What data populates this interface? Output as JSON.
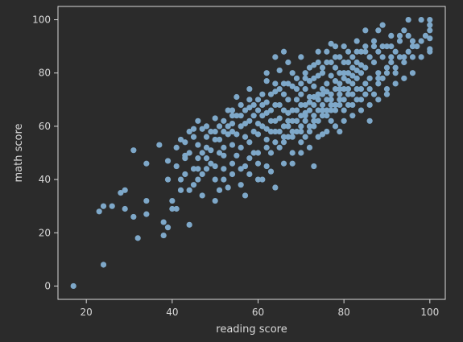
{
  "chart_data": {
    "type": "scatter",
    "title": "",
    "xlabel": "reading score",
    "ylabel": "math score",
    "xlim": [
      13.4,
      103.6
    ],
    "ylim": [
      -5,
      105
    ],
    "xticks": [
      20,
      40,
      60,
      80,
      100
    ],
    "yticks": [
      0,
      20,
      40,
      60,
      80,
      100
    ],
    "grid": false,
    "colors": {
      "background": "#2b2b2b",
      "point": "#7ea8c9",
      "axis": "#d8d8d8",
      "text": "#d8d8d8"
    },
    "points": [
      [
        17,
        0
      ],
      [
        24,
        8
      ],
      [
        32,
        18
      ],
      [
        38,
        19
      ],
      [
        44,
        23
      ],
      [
        23,
        28
      ],
      [
        24,
        30
      ],
      [
        26,
        30
      ],
      [
        29,
        29
      ],
      [
        28,
        35
      ],
      [
        29,
        36
      ],
      [
        31,
        26
      ],
      [
        34,
        27
      ],
      [
        34,
        32
      ],
      [
        31,
        51
      ],
      [
        34,
        46
      ],
      [
        37,
        53
      ],
      [
        38,
        24
      ],
      [
        39,
        22
      ],
      [
        40,
        29
      ],
      [
        41,
        29
      ],
      [
        42,
        36
      ],
      [
        40,
        32
      ],
      [
        42,
        40
      ],
      [
        39,
        47
      ],
      [
        39,
        40
      ],
      [
        41,
        45
      ],
      [
        43,
        42
      ],
      [
        43,
        48
      ],
      [
        41,
        52
      ],
      [
        42,
        55
      ],
      [
        44,
        58
      ],
      [
        45,
        59
      ],
      [
        43,
        49
      ],
      [
        45,
        44
      ],
      [
        45,
        38
      ],
      [
        47,
        34
      ],
      [
        47,
        42
      ],
      [
        46,
        53
      ],
      [
        46,
        62
      ],
      [
        47,
        59
      ],
      [
        48,
        52
      ],
      [
        49,
        51
      ],
      [
        49,
        46
      ],
      [
        50,
        40
      ],
      [
        50,
        32
      ],
      [
        51,
        36
      ],
      [
        51,
        55
      ],
      [
        50,
        63
      ],
      [
        51,
        60
      ],
      [
        52,
        44
      ],
      [
        52,
        52
      ],
      [
        53,
        57
      ],
      [
        53,
        37
      ],
      [
        54,
        46
      ],
      [
        54,
        64
      ],
      [
        55,
        71
      ],
      [
        54,
        58
      ],
      [
        55,
        49
      ],
      [
        56,
        52
      ],
      [
        56,
        38
      ],
      [
        57,
        61
      ],
      [
        57,
        45
      ],
      [
        57,
        34
      ],
      [
        58,
        54
      ],
      [
        58,
        67
      ],
      [
        59,
        64
      ],
      [
        59,
        50
      ],
      [
        60,
        46
      ],
      [
        60,
        57
      ],
      [
        61,
        72
      ],
      [
        61,
        60
      ],
      [
        61,
        40
      ],
      [
        62,
        55
      ],
      [
        62,
        65
      ],
      [
        62,
        77
      ],
      [
        63,
        50
      ],
      [
        63,
        62
      ],
      [
        63,
        43
      ],
      [
        64,
        58
      ],
      [
        64,
        68
      ],
      [
        64,
        73
      ],
      [
        64,
        37
      ],
      [
        65,
        52
      ],
      [
        65,
        63
      ],
      [
        65,
        81
      ],
      [
        66,
        60
      ],
      [
        66,
        66
      ],
      [
        66,
        56
      ],
      [
        67,
        70
      ],
      [
        67,
        62
      ],
      [
        67,
        84
      ],
      [
        68,
        58
      ],
      [
        68,
        66
      ],
      [
        68,
        75
      ],
      [
        68,
        50
      ],
      [
        69,
        62
      ],
      [
        69,
        70
      ],
      [
        69,
        78
      ],
      [
        70,
        64
      ],
      [
        70,
        72
      ],
      [
        70,
        58
      ],
      [
        70,
        54
      ],
      [
        71,
        68
      ],
      [
        71,
        74
      ],
      [
        71,
        80
      ],
      [
        71,
        62
      ],
      [
        72,
        66
      ],
      [
        72,
        71
      ],
      [
        72,
        77
      ],
      [
        72,
        60
      ],
      [
        73,
        68
      ],
      [
        73,
        75
      ],
      [
        73,
        83
      ],
      [
        73,
        45
      ],
      [
        73,
        62
      ],
      [
        74,
        72
      ],
      [
        74,
        79
      ],
      [
        74,
        66
      ],
      [
        74,
        88
      ],
      [
        75,
        68
      ],
      [
        75,
        74
      ],
      [
        75,
        57
      ],
      [
        75,
        80
      ],
      [
        76,
        70
      ],
      [
        76,
        76
      ],
      [
        76,
        84
      ],
      [
        76,
        64
      ],
      [
        77,
        72
      ],
      [
        77,
        79
      ],
      [
        77,
        62
      ],
      [
        77,
        91
      ],
      [
        78,
        74
      ],
      [
        78,
        82
      ],
      [
        78,
        68
      ],
      [
        78,
        86
      ],
      [
        79,
        76
      ],
      [
        79,
        70
      ],
      [
        79,
        80
      ],
      [
        79,
        58
      ],
      [
        80,
        78
      ],
      [
        80,
        84
      ],
      [
        80,
        66
      ],
      [
        80,
        74
      ],
      [
        81,
        80
      ],
      [
        81,
        88
      ],
      [
        81,
        72
      ],
      [
        82,
        76
      ],
      [
        82,
        82
      ],
      [
        82,
        86
      ],
      [
        82,
        68
      ],
      [
        83,
        78
      ],
      [
        83,
        84
      ],
      [
        83,
        92
      ],
      [
        83,
        74
      ],
      [
        84,
        80
      ],
      [
        84,
        88
      ],
      [
        84,
        70
      ],
      [
        85,
        76
      ],
      [
        85,
        82
      ],
      [
        85,
        90
      ],
      [
        85,
        96
      ],
      [
        86,
        78
      ],
      [
        86,
        86
      ],
      [
        86,
        62
      ],
      [
        87,
        84
      ],
      [
        87,
        92
      ],
      [
        87,
        72
      ],
      [
        88,
        80
      ],
      [
        88,
        88
      ],
      [
        88,
        96
      ],
      [
        88,
        76
      ],
      [
        89,
        86
      ],
      [
        89,
        78
      ],
      [
        89,
        98
      ],
      [
        90,
        82
      ],
      [
        90,
        90
      ],
      [
        90,
        74
      ],
      [
        91,
        84
      ],
      [
        91,
        94
      ],
      [
        91,
        86
      ],
      [
        92,
        80
      ],
      [
        92,
        88
      ],
      [
        93,
        86
      ],
      [
        93,
        92
      ],
      [
        94,
        84
      ],
      [
        94,
        96
      ],
      [
        95,
        88
      ],
      [
        95,
        100
      ],
      [
        96,
        92
      ],
      [
        96,
        86
      ],
      [
        97,
        90
      ],
      [
        98,
        100
      ],
      [
        99,
        94
      ],
      [
        100,
        98
      ],
      [
        100,
        88
      ],
      [
        100,
        96
      ],
      [
        100,
        100
      ],
      [
        100,
        93
      ],
      [
        100,
        89
      ],
      [
        65,
        68
      ],
      [
        66,
        72
      ],
      [
        67,
        65
      ],
      [
        68,
        62
      ],
      [
        69,
        66
      ],
      [
        70,
        68
      ],
      [
        71,
        65
      ],
      [
        72,
        69
      ],
      [
        73,
        71
      ],
      [
        74,
        70
      ],
      [
        75,
        72
      ],
      [
        76,
        73
      ],
      [
        77,
        70
      ],
      [
        78,
        77
      ],
      [
        79,
        74
      ],
      [
        80,
        80
      ],
      [
        81,
        77
      ],
      [
        82,
        79
      ],
      [
        83,
        81
      ],
      [
        84,
        83
      ],
      [
        58,
        62
      ],
      [
        59,
        58
      ],
      [
        60,
        61
      ],
      [
        61,
        64
      ],
      [
        62,
        59
      ],
      [
        63,
        66
      ],
      [
        64,
        62
      ],
      [
        60,
        66
      ],
      [
        57,
        56
      ],
      [
        56,
        60
      ],
      [
        55,
        57
      ],
      [
        54,
        53
      ],
      [
        53,
        60
      ],
      [
        52,
        49
      ],
      [
        51,
        50
      ],
      [
        50,
        55
      ],
      [
        49,
        58
      ],
      [
        48,
        56
      ],
      [
        47,
        50
      ],
      [
        46,
        48
      ],
      [
        44,
        50
      ],
      [
        43,
        54
      ],
      [
        45,
        56
      ],
      [
        48,
        60
      ],
      [
        50,
        58
      ],
      [
        52,
        62
      ],
      [
        54,
        61
      ],
      [
        56,
        64
      ],
      [
        58,
        70
      ],
      [
        60,
        70
      ],
      [
        62,
        69
      ],
      [
        64,
        76
      ],
      [
        66,
        76
      ],
      [
        68,
        80
      ],
      [
        70,
        76
      ],
      [
        72,
        82
      ],
      [
        74,
        84
      ],
      [
        76,
        88
      ],
      [
        78,
        90
      ],
      [
        80,
        90
      ],
      [
        66,
        46
      ],
      [
        68,
        46
      ],
      [
        70,
        50
      ],
      [
        72,
        52
      ],
      [
        74,
        56
      ],
      [
        76,
        58
      ],
      [
        78,
        60
      ],
      [
        80,
        62
      ],
      [
        82,
        64
      ],
      [
        84,
        66
      ],
      [
        86,
        68
      ],
      [
        88,
        70
      ],
      [
        90,
        72
      ],
      [
        92,
        76
      ],
      [
        94,
        78
      ],
      [
        96,
        80
      ],
      [
        98,
        86
      ],
      [
        58,
        42
      ],
      [
        60,
        40
      ],
      [
        62,
        45
      ],
      [
        44,
        36
      ],
      [
        46,
        40
      ],
      [
        48,
        44
      ],
      [
        50,
        45
      ],
      [
        52,
        40
      ],
      [
        54,
        42
      ],
      [
        56,
        44
      ],
      [
        58,
        48
      ],
      [
        60,
        50
      ],
      [
        62,
        52
      ],
      [
        64,
        54
      ],
      [
        66,
        54
      ],
      [
        68,
        56
      ],
      [
        70,
        60
      ],
      [
        72,
        58
      ],
      [
        74,
        62
      ],
      [
        76,
        66
      ],
      [
        78,
        66
      ],
      [
        80,
        70
      ],
      [
        82,
        72
      ],
      [
        84,
        74
      ],
      [
        86,
        74
      ],
      [
        88,
        78
      ],
      [
        90,
        80
      ],
      [
        92,
        82
      ],
      [
        94,
        86
      ],
      [
        96,
        90
      ],
      [
        98,
        92
      ],
      [
        53,
        66
      ],
      [
        55,
        64
      ],
      [
        57,
        66
      ],
      [
        59,
        68
      ],
      [
        61,
        68
      ],
      [
        63,
        72
      ],
      [
        65,
        74
      ],
      [
        67,
        76
      ],
      [
        69,
        74
      ],
      [
        71,
        78
      ],
      [
        73,
        78
      ],
      [
        75,
        82
      ],
      [
        77,
        84
      ],
      [
        79,
        86
      ],
      [
        81,
        84
      ],
      [
        83,
        88
      ],
      [
        85,
        88
      ],
      [
        87,
        90
      ],
      [
        89,
        90
      ],
      [
        91,
        90
      ],
      [
        93,
        94
      ],
      [
        95,
        94
      ],
      [
        64,
        86
      ],
      [
        66,
        88
      ],
      [
        70,
        86
      ],
      [
        62,
        80
      ],
      [
        58,
        74
      ],
      [
        56,
        68
      ],
      [
        54,
        66
      ],
      [
        52,
        58
      ],
      [
        48,
        48
      ],
      [
        46,
        44
      ],
      [
        67,
        56
      ],
      [
        69,
        58
      ],
      [
        71,
        56
      ],
      [
        73,
        60
      ],
      [
        75,
        64
      ],
      [
        77,
        66
      ],
      [
        79,
        68
      ],
      [
        81,
        68
      ],
      [
        83,
        70
      ],
      [
        85,
        72
      ],
      [
        63,
        58
      ],
      [
        65,
        58
      ],
      [
        67,
        60
      ],
      [
        69,
        62
      ],
      [
        71,
        64
      ],
      [
        73,
        64
      ],
      [
        75,
        66
      ],
      [
        77,
        68
      ],
      [
        79,
        72
      ],
      [
        81,
        74
      ]
    ]
  }
}
